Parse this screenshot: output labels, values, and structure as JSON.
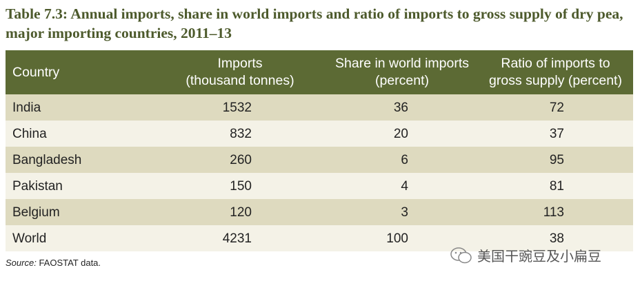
{
  "title": "Table 7.3: Annual imports, share in world imports and ratio of imports to gross supply of dry pea, major importing countries, 2011–13",
  "table": {
    "headers": [
      [
        "Country"
      ],
      [
        "Imports",
        "(thousand tonnes)"
      ],
      [
        "Share in world imports",
        "(percent)"
      ],
      [
        "Ratio of imports to",
        "gross supply (percent)"
      ]
    ],
    "rows": [
      [
        "India",
        1532,
        36,
        72
      ],
      [
        "China",
        832,
        20,
        37
      ],
      [
        "Bangladesh",
        260,
        6,
        95
      ],
      [
        "Pakistan",
        150,
        4,
        81
      ],
      [
        "Belgium",
        120,
        3,
        113
      ],
      [
        "World",
        4231,
        100,
        38
      ]
    ]
  },
  "source": {
    "label": "Source:",
    "text": "FAOSTAT data."
  },
  "watermark": "美国干豌豆及小扁豆"
}
